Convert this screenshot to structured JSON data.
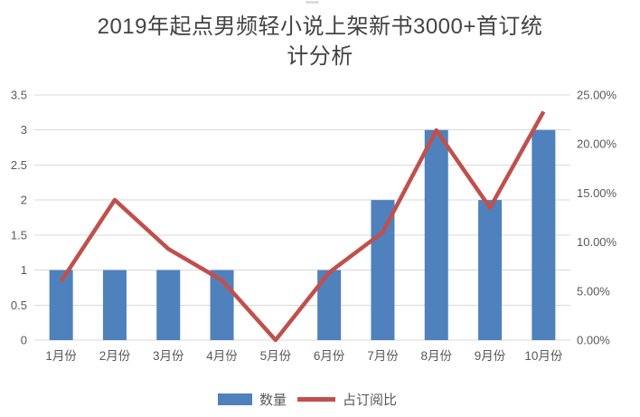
{
  "title": {
    "full": "2019年起点男频轻小说上架新书3000+首订统计分析",
    "line1": "2019年起点男频轻小说上架新书3000+首订统",
    "line2": "计分析"
  },
  "chart_data": {
    "type": "combo",
    "title": "2019年起点男频轻小说上架新书3000+首订统计分析",
    "categories": [
      "1月份",
      "2月份",
      "3月份",
      "4月份",
      "5月份",
      "6月份",
      "7月份",
      "8月份",
      "9月份",
      "10月份"
    ],
    "series": [
      {
        "name": "数量",
        "type": "bar",
        "axis": "left",
        "color": "#4F81BD",
        "values": [
          1,
          1,
          1,
          1,
          0,
          1,
          2,
          3,
          2,
          3
        ]
      },
      {
        "name": "占订阅比",
        "type": "line",
        "axis": "right",
        "color": "#C0504D",
        "unit": "%",
        "values": [
          6.0,
          14.3,
          9.3,
          6.1,
          0.0,
          6.9,
          11.0,
          21.4,
          13.5,
          23.3
        ]
      }
    ],
    "left_axis": {
      "min": 0,
      "max": 3.5,
      "step": 0.5,
      "ticks": [
        "0",
        "0.5",
        "1",
        "1.5",
        "2",
        "2.5",
        "3",
        "3.5"
      ]
    },
    "right_axis": {
      "min": 0,
      "max": 25,
      "step": 5,
      "ticks": [
        "0.00%",
        "5.00%",
        "10.00%",
        "15.00%",
        "20.00%",
        "25.00%"
      ]
    },
    "grid": true,
    "legend_position": "bottom"
  },
  "colors": {
    "bar": "#4F81BD",
    "line": "#C0504D",
    "grid": "#D9D9D9",
    "axis_text": "#595959",
    "title_text": "#434343"
  }
}
